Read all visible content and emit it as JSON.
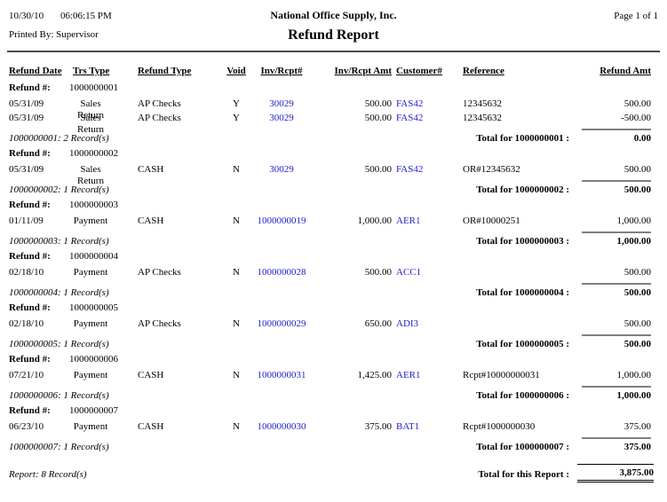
{
  "header": {
    "date": "10/30/10",
    "time": "06:06:15 PM",
    "company": "National Office Supply, Inc.",
    "page": "Page 1 of 1",
    "printed_by": "Printed By: Supervisor",
    "title": "Refund Report"
  },
  "columns": [
    "Refund Date",
    "Trs Type",
    "Refund Type",
    "Void",
    "Inv/Rcpt#",
    "Inv/Rcpt Amt",
    "Customer#",
    "Reference",
    "Refund Amt"
  ],
  "refund_label": "Refund #:",
  "colors": {
    "link": "#2222CC",
    "section_rule": "#808080"
  },
  "sections": [
    {
      "refund_no": "1000000001",
      "rows": [
        {
          "date": "05/31/09",
          "trs_type": "Sales Return",
          "refund_type": "AP Checks",
          "void": "Y",
          "inv_rcpt": "30029",
          "inv_rcpt_amt": "500.00",
          "customer": "FAS42",
          "reference": "12345632",
          "refund_amt": "500.00"
        },
        {
          "date": "05/31/09",
          "trs_type": "Sales Return",
          "refund_type": "AP Checks",
          "void": "Y",
          "inv_rcpt": "30029",
          "inv_rcpt_amt": "500.00",
          "customer": "FAS42",
          "reference": "12345632",
          "refund_amt": "-500.00"
        }
      ],
      "count": "1000000001: 2 Record(s)",
      "total_label": "Total for 1000000001 :",
      "total": "0.00"
    },
    {
      "refund_no": "1000000002",
      "rows": [
        {
          "date": "05/31/09",
          "trs_type": "Sales Return",
          "refund_type": "CASH",
          "void": "N",
          "inv_rcpt": "30029",
          "inv_rcpt_amt": "500.00",
          "customer": "FAS42",
          "reference": "OR#12345632",
          "refund_amt": "500.00"
        }
      ],
      "count": "1000000002: 1 Record(s)",
      "total_label": "Total for 1000000002 :",
      "total": "500.00"
    },
    {
      "refund_no": "1000000003",
      "rows": [
        {
          "date": "01/11/09",
          "trs_type": "Payment",
          "refund_type": "CASH",
          "void": "N",
          "inv_rcpt": "1000000019",
          "inv_rcpt_amt": "1,000.00",
          "customer": "AER1",
          "reference": "OR#10000251",
          "refund_amt": "1,000.00"
        }
      ],
      "count": "1000000003: 1 Record(s)",
      "total_label": "Total for 1000000003 :",
      "total": "1,000.00"
    },
    {
      "refund_no": "1000000004",
      "rows": [
        {
          "date": "02/18/10",
          "trs_type": "Payment",
          "refund_type": "AP Checks",
          "void": "N",
          "inv_rcpt": "1000000028",
          "inv_rcpt_amt": "500.00",
          "customer": "ACC1",
          "reference": "",
          "refund_amt": "500.00"
        }
      ],
      "count": "1000000004: 1 Record(s)",
      "total_label": "Total for 1000000004 :",
      "total": "500.00"
    },
    {
      "refund_no": "1000000005",
      "rows": [
        {
          "date": "02/18/10",
          "trs_type": "Payment",
          "refund_type": "AP Checks",
          "void": "N",
          "inv_rcpt": "1000000029",
          "inv_rcpt_amt": "650.00",
          "customer": "ADI3",
          "reference": "",
          "refund_amt": "500.00"
        }
      ],
      "count": "1000000005: 1 Record(s)",
      "total_label": "Total for 1000000005 :",
      "total": "500.00"
    },
    {
      "refund_no": "1000000006",
      "rows": [
        {
          "date": "07/21/10",
          "trs_type": "Payment",
          "refund_type": "CASH",
          "void": "N",
          "inv_rcpt": "1000000031",
          "inv_rcpt_amt": "1,425.00",
          "customer": "AER1",
          "reference": "Rcpt#10000000031",
          "refund_amt": "1,000.00"
        }
      ],
      "count": "1000000006: 1 Record(s)",
      "total_label": "Total for 1000000006 :",
      "total": "1,000.00"
    },
    {
      "refund_no": "1000000007",
      "rows": [
        {
          "date": "06/23/10",
          "trs_type": "Payment",
          "refund_type": "CASH",
          "void": "N",
          "inv_rcpt": "1000000030",
          "inv_rcpt_amt": "375.00",
          "customer": "BAT1",
          "reference": "Rcpt#1000000030",
          "refund_amt": "375.00"
        }
      ],
      "count": "1000000007: 1 Record(s)",
      "total_label": "Total for 1000000007 :",
      "total": "375.00"
    }
  ],
  "footer": {
    "count": "Report: 8 Record(s)",
    "total_label": "Total for this Report :",
    "total": "3,875.00"
  }
}
